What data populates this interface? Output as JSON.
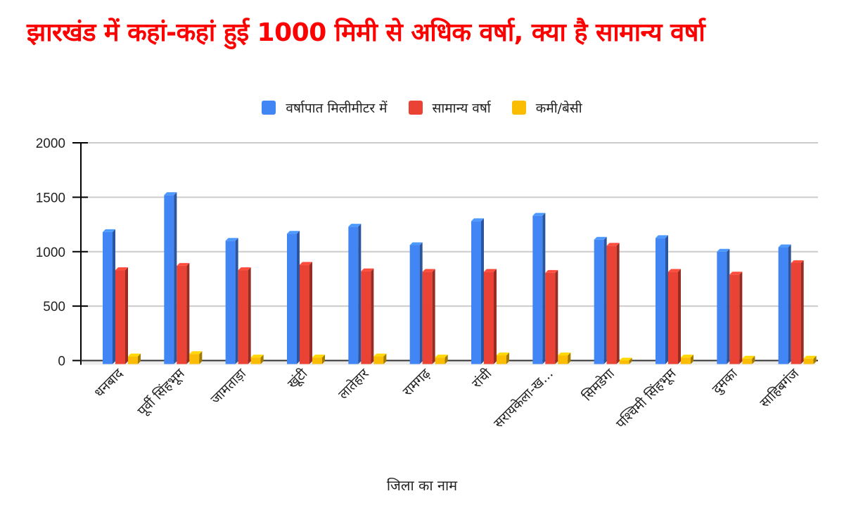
{
  "title": "झारखंड में कहां-कहां हुई 1000 मिमी से अधिक वर्षा, क्या है सामान्य वर्षा",
  "legend": [
    {
      "label": "वर्षापात मिलीमीटर में",
      "color": "#4285f4"
    },
    {
      "label": "सामान्य वर्षा",
      "color": "#ea4335"
    },
    {
      "label": "कमी/बेसी",
      "color": "#fbbc04"
    }
  ],
  "xaxis_title": "जिला का नाम",
  "chart_data": {
    "type": "bar",
    "title": "झारखंड में कहां-कहां हुई 1000 मिमी से अधिक वर्षा, क्या है सामान्य वर्षा",
    "xlabel": "जिला का नाम",
    "ylabel": "",
    "ylim": [
      0,
      2000
    ],
    "yticks": [
      0,
      500,
      1000,
      1500,
      2000
    ],
    "grid": true,
    "legend_position": "top",
    "style": "3d-column",
    "categories": [
      "धनबाद",
      "पूर्वी सिंहभूम",
      "जामताड़ा",
      "खूंटी",
      "लातेहार",
      "रामगढ़",
      "रांची",
      "सरायकेला-ख...",
      "सिमडेगा",
      "पश्चिमी सिंहभूम",
      "दुमका",
      "साहिबगंज"
    ],
    "series": [
      {
        "name": "वर्षापात मिलीमीटर में",
        "color": "#4285f4",
        "values": [
          1180,
          1520,
          1100,
          1165,
          1230,
          1060,
          1280,
          1330,
          1110,
          1125,
          1000,
          1040
        ]
      },
      {
        "name": "सामान्य वर्षा",
        "color": "#ea4335",
        "values": [
          830,
          870,
          830,
          880,
          820,
          815,
          815,
          805,
          1055,
          815,
          790,
          895
        ]
      },
      {
        "name": "कमी/बेसी",
        "color": "#fbbc04",
        "values": [
          38,
          60,
          28,
          28,
          38,
          28,
          48,
          48,
          0,
          28,
          18,
          18
        ]
      }
    ]
  }
}
